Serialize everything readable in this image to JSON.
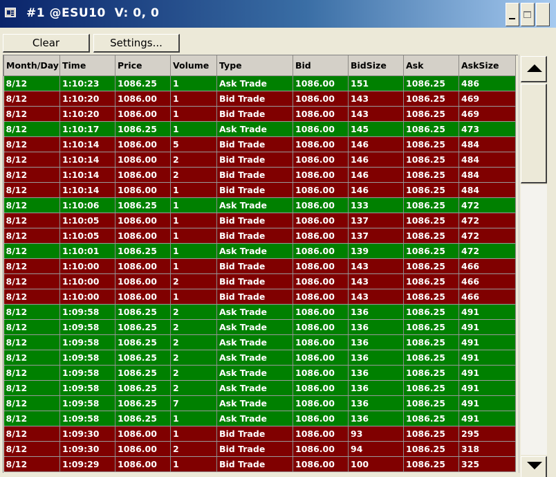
{
  "window": {
    "title": "#1 @ESU10  V: 0, 0",
    "controls": [
      "minimize",
      "maximize",
      "close"
    ]
  },
  "toolbar": {
    "clear_label": "Clear",
    "settings_label": "Settings..."
  },
  "columns": [
    "Month/Day",
    "Time",
    "Price",
    "Volume",
    "Type",
    "Bid",
    "BidSize",
    "Ask",
    "AskSize"
  ],
  "colors": {
    "ask_trade": "#008000",
    "bid_trade": "#800000"
  },
  "rows": [
    [
      "8/12",
      "1:10:23",
      "1086.25",
      "1",
      "Ask Trade",
      "1086.00",
      "151",
      "1086.25",
      "486"
    ],
    [
      "8/12",
      "1:10:20",
      "1086.00",
      "1",
      "Bid Trade",
      "1086.00",
      "143",
      "1086.25",
      "469"
    ],
    [
      "8/12",
      "1:10:20",
      "1086.00",
      "1",
      "Bid Trade",
      "1086.00",
      "143",
      "1086.25",
      "469"
    ],
    [
      "8/12",
      "1:10:17",
      "1086.25",
      "1",
      "Ask Trade",
      "1086.00",
      "145",
      "1086.25",
      "473"
    ],
    [
      "8/12",
      "1:10:14",
      "1086.00",
      "5",
      "Bid Trade",
      "1086.00",
      "146",
      "1086.25",
      "484"
    ],
    [
      "8/12",
      "1:10:14",
      "1086.00",
      "2",
      "Bid Trade",
      "1086.00",
      "146",
      "1086.25",
      "484"
    ],
    [
      "8/12",
      "1:10:14",
      "1086.00",
      "2",
      "Bid Trade",
      "1086.00",
      "146",
      "1086.25",
      "484"
    ],
    [
      "8/12",
      "1:10:14",
      "1086.00",
      "1",
      "Bid Trade",
      "1086.00",
      "146",
      "1086.25",
      "484"
    ],
    [
      "8/12",
      "1:10:06",
      "1086.25",
      "1",
      "Ask Trade",
      "1086.00",
      "133",
      "1086.25",
      "472"
    ],
    [
      "8/12",
      "1:10:05",
      "1086.00",
      "1",
      "Bid Trade",
      "1086.00",
      "137",
      "1086.25",
      "472"
    ],
    [
      "8/12",
      "1:10:05",
      "1086.00",
      "1",
      "Bid Trade",
      "1086.00",
      "137",
      "1086.25",
      "472"
    ],
    [
      "8/12",
      "1:10:01",
      "1086.25",
      "1",
      "Ask Trade",
      "1086.00",
      "139",
      "1086.25",
      "472"
    ],
    [
      "8/12",
      "1:10:00",
      "1086.00",
      "1",
      "Bid Trade",
      "1086.00",
      "143",
      "1086.25",
      "466"
    ],
    [
      "8/12",
      "1:10:00",
      "1086.00",
      "2",
      "Bid Trade",
      "1086.00",
      "143",
      "1086.25",
      "466"
    ],
    [
      "8/12",
      "1:10:00",
      "1086.00",
      "1",
      "Bid Trade",
      "1086.00",
      "143",
      "1086.25",
      "466"
    ],
    [
      "8/12",
      "1:09:58",
      "1086.25",
      "2",
      "Ask Trade",
      "1086.00",
      "136",
      "1086.25",
      "491"
    ],
    [
      "8/12",
      "1:09:58",
      "1086.25",
      "2",
      "Ask Trade",
      "1086.00",
      "136",
      "1086.25",
      "491"
    ],
    [
      "8/12",
      "1:09:58",
      "1086.25",
      "2",
      "Ask Trade",
      "1086.00",
      "136",
      "1086.25",
      "491"
    ],
    [
      "8/12",
      "1:09:58",
      "1086.25",
      "2",
      "Ask Trade",
      "1086.00",
      "136",
      "1086.25",
      "491"
    ],
    [
      "8/12",
      "1:09:58",
      "1086.25",
      "2",
      "Ask Trade",
      "1086.00",
      "136",
      "1086.25",
      "491"
    ],
    [
      "8/12",
      "1:09:58",
      "1086.25",
      "2",
      "Ask Trade",
      "1086.00",
      "136",
      "1086.25",
      "491"
    ],
    [
      "8/12",
      "1:09:58",
      "1086.25",
      "7",
      "Ask Trade",
      "1086.00",
      "136",
      "1086.25",
      "491"
    ],
    [
      "8/12",
      "1:09:58",
      "1086.25",
      "1",
      "Ask Trade",
      "1086.00",
      "136",
      "1086.25",
      "491"
    ],
    [
      "8/12",
      "1:09:30",
      "1086.00",
      "1",
      "Bid Trade",
      "1086.00",
      "93",
      "1086.25",
      "295"
    ],
    [
      "8/12",
      "1:09:30",
      "1086.00",
      "2",
      "Bid Trade",
      "1086.00",
      "94",
      "1086.25",
      "318"
    ],
    [
      "8/12",
      "1:09:29",
      "1086.00",
      "1",
      "Bid Trade",
      "1086.00",
      "100",
      "1086.25",
      "325"
    ]
  ]
}
